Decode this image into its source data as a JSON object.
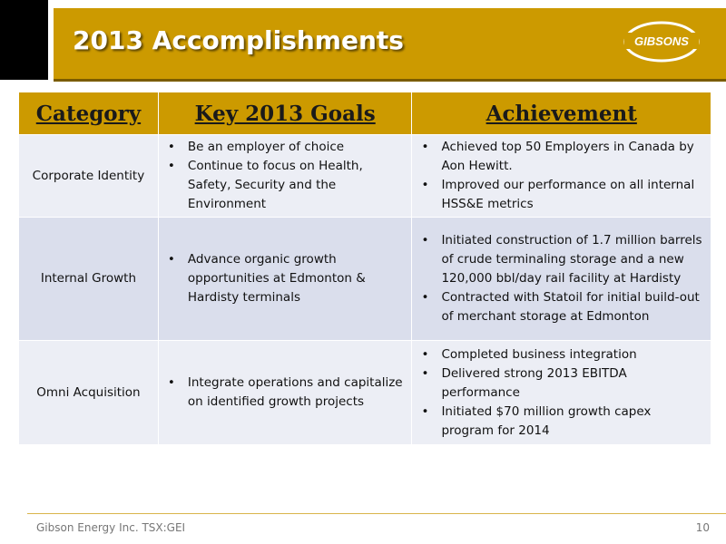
{
  "header": {
    "title": "2013 Accomplishments",
    "logo_text": "GIBSONS"
  },
  "table": {
    "columns": [
      "Category",
      "Key 2013 Goals",
      "Achievement"
    ],
    "rows": [
      {
        "category": "Corporate Identity",
        "goals": [
          "Be an employer of choice",
          "Continue to focus on Health, Safety, Security and the Environment"
        ],
        "achievements": [
          "Achieved top 50 Employers in Canada by Aon Hewitt.",
          "Improved our performance on all internal HSS&E metrics"
        ]
      },
      {
        "category": "Internal Growth",
        "goals": [
          "Advance organic growth opportunities at Edmonton & Hardisty terminals"
        ],
        "achievements": [
          "Initiated construction of 1.7 million barrels of crude terminaling storage and a new 120,000 bbl/day rail facility at Hardisty",
          "Contracted with Statoil for initial build-out of merchant storage at Edmonton"
        ]
      },
      {
        "category": "Omni Acquisition",
        "goals": [
          "Integrate operations and capitalize on identified growth projects"
        ],
        "achievements": [
          "Completed business integration",
          "Delivered strong 2013 EBITDA performance",
          "Initiated $70 million growth capex program for 2014"
        ]
      }
    ]
  },
  "footer": {
    "company": "Gibson Energy Inc.  TSX:GEI",
    "page_number": "10"
  },
  "colors": {
    "accent": "#cc9a00",
    "row_light": "#eceef5",
    "row_dark": "#dadeec"
  }
}
